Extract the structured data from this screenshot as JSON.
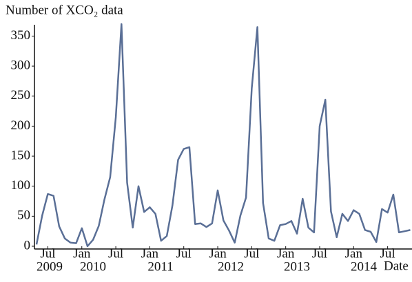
{
  "chart_data": {
    "type": "line",
    "ylabel": "Number of XCO₂ data",
    "xlabel": "Date",
    "x": [
      "2009-05",
      "2009-06",
      "2009-07",
      "2009-08",
      "2009-09",
      "2009-10",
      "2009-11",
      "2009-12",
      "2010-01",
      "2010-02",
      "2010-03",
      "2010-04",
      "2010-05",
      "2010-06",
      "2010-07",
      "2010-08",
      "2010-09",
      "2010-10",
      "2010-11",
      "2010-12",
      "2011-01",
      "2011-02",
      "2011-03",
      "2011-04",
      "2011-05",
      "2011-06",
      "2011-07",
      "2011-08",
      "2011-09",
      "2011-10",
      "2011-11",
      "2011-12",
      "2012-01",
      "2012-02",
      "2012-03",
      "2012-04",
      "2012-05",
      "2012-06",
      "2012-07",
      "2012-08",
      "2012-09",
      "2012-10",
      "2012-11",
      "2012-12",
      "2013-01",
      "2013-02",
      "2013-03",
      "2013-04",
      "2013-05",
      "2013-06",
      "2013-07",
      "2013-08",
      "2013-09",
      "2013-10",
      "2013-11",
      "2013-12",
      "2014-01",
      "2014-02",
      "2014-03",
      "2014-04",
      "2014-05",
      "2014-06",
      "2014-07",
      "2014-08",
      "2014-09",
      "2014-10",
      "2014-11"
    ],
    "series": [
      {
        "name": "XCO2 data",
        "color": "#5a6f96",
        "values": [
          3,
          51,
          87,
          84,
          33,
          13,
          6,
          5,
          30,
          0,
          11,
          34,
          78,
          115,
          215,
          370,
          106,
          31,
          100,
          57,
          65,
          54,
          9,
          17,
          68,
          144,
          162,
          165,
          37,
          38,
          32,
          38,
          93,
          43,
          26,
          6,
          51,
          81,
          263,
          365,
          72,
          13,
          9,
          35,
          37,
          42,
          21,
          79,
          31,
          23,
          200,
          244,
          58,
          15,
          54,
          42,
          60,
          54,
          27,
          24,
          7,
          62,
          56,
          86,
          23,
          25,
          27
        ]
      }
    ],
    "xticks": [
      {
        "value": "2009-07",
        "label": "Jul"
      },
      {
        "value": "2010-01",
        "label": "Jan"
      },
      {
        "value": "2010-07",
        "label": "Jul"
      },
      {
        "value": "2011-01",
        "label": "Jan"
      },
      {
        "value": "2011-07",
        "label": "Jul"
      },
      {
        "value": "2012-01",
        "label": "Jan"
      },
      {
        "value": "2012-07",
        "label": "Jul"
      },
      {
        "value": "2013-01",
        "label": "Jan"
      },
      {
        "value": "2013-07",
        "label": "Jul"
      },
      {
        "value": "2014-01",
        "label": "Jan"
      },
      {
        "value": "2014-07",
        "label": "Jul"
      }
    ],
    "year_labels": [
      "2009",
      "2010",
      "2011",
      "2012",
      "2013",
      "2014"
    ],
    "ylim": [
      0,
      370
    ],
    "yticks": [
      0,
      50,
      100,
      150,
      200,
      250,
      300,
      350
    ]
  }
}
